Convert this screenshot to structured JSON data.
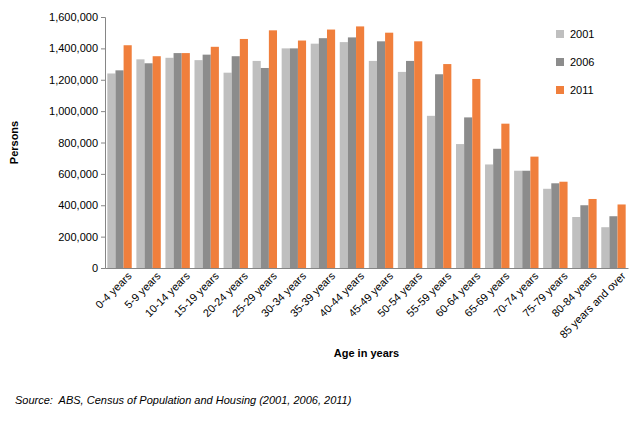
{
  "chart_data": {
    "type": "bar",
    "categories": [
      "0-4 years",
      "5-9 years",
      "10-14 years",
      "15-19 years",
      "20-24 years",
      "25-29 years",
      "30-34 years",
      "35-39 years",
      "40-44 years",
      "45-49 years",
      "50-54 years",
      "55-59 years",
      "60-64 years",
      "65-69 years",
      "70-74 years",
      "75-79 years",
      "80-84 years",
      "85 years and over"
    ],
    "series": [
      {
        "name": "2001",
        "color": "#bfbfbf",
        "values": [
          1240000,
          1330000,
          1340000,
          1325000,
          1245000,
          1320000,
          1400000,
          1430000,
          1440000,
          1320000,
          1250000,
          970000,
          790000,
          660000,
          620000,
          505000,
          325000,
          260000
        ]
      },
      {
        "name": "2006",
        "color": "#8c8c8c",
        "values": [
          1260000,
          1305000,
          1370000,
          1360000,
          1350000,
          1275000,
          1400000,
          1465000,
          1470000,
          1445000,
          1320000,
          1235000,
          960000,
          760000,
          620000,
          540000,
          400000,
          330000
        ]
      },
      {
        "name": "2011",
        "color": "#f07f3c",
        "values": [
          1420000,
          1350000,
          1370000,
          1410000,
          1460000,
          1515000,
          1450000,
          1520000,
          1540000,
          1500000,
          1445000,
          1300000,
          1205000,
          920000,
          710000,
          550000,
          440000,
          405000
        ]
      }
    ],
    "x_label": "Age in years",
    "y_label": "Persons",
    "annotations": [
      "Source:  ABS, Census of Population and Housing (2001, 2006, 2011)"
    ],
    "ylim": [
      0,
      1600000
    ],
    "yticks": [
      0,
      {
        "value": 200000,
        "label": "200,000"
      },
      {
        "value": 400000,
        "label": "400,000"
      },
      {
        "value": 600000,
        "label": "600,000"
      },
      {
        "value": 800000,
        "label": "800,000"
      },
      {
        "value": 1000000,
        "label": "1,000,000"
      },
      {
        "value": 1200000,
        "label": "1,200,000"
      },
      {
        "value": 1400000,
        "label": "1,400,000"
      },
      {
        "value": 1600000,
        "label": "1,600,000"
      }
    ],
    "grid": false,
    "legend": "right"
  }
}
